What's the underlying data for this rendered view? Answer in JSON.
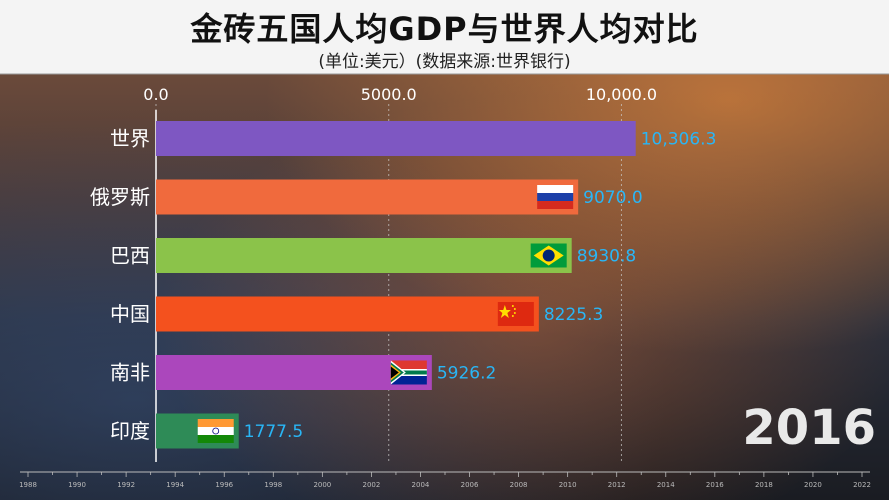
{
  "title": "金砖五国人均GDP与世界人均对比",
  "subtitle": "(单位:美元）(数据来源:世界银行)",
  "chart_data": {
    "type": "bar",
    "orientation": "horizontal",
    "year": "2016",
    "categories": [
      "世界",
      "俄罗斯",
      "巴西",
      "中国",
      "南非",
      "印度"
    ],
    "values": [
      10306.3,
      9070.0,
      8930.8,
      8225.3,
      5926.2,
      1777.5
    ],
    "value_labels": [
      "10,306.3",
      "9070.0",
      "8930.8",
      "8225.3",
      "5926.2",
      "1777.5"
    ],
    "colors": [
      "#7e57c2",
      "#f06a3d",
      "#8bc34a",
      "#f4511e",
      "#ab47bc",
      "#2e8b57"
    ],
    "flags": [
      null,
      "russia-flag",
      "brazil-flag",
      "china-flag",
      "south-africa-flag",
      "india-flag"
    ],
    "xlim": [
      0,
      11000
    ],
    "xticks": [
      0,
      5000,
      10000
    ],
    "xtick_labels": [
      "0.0",
      "5000.0",
      "10,000.0"
    ],
    "timeline": [
      "1988",
      "1990",
      "1992",
      "1994",
      "1996",
      "1998",
      "2000",
      "2002",
      "2004",
      "2006",
      "2008",
      "2010",
      "2012",
      "2014",
      "2016",
      "2018",
      "2020",
      "2022"
    ],
    "timeline_range": [
      1988,
      2022
    ]
  }
}
